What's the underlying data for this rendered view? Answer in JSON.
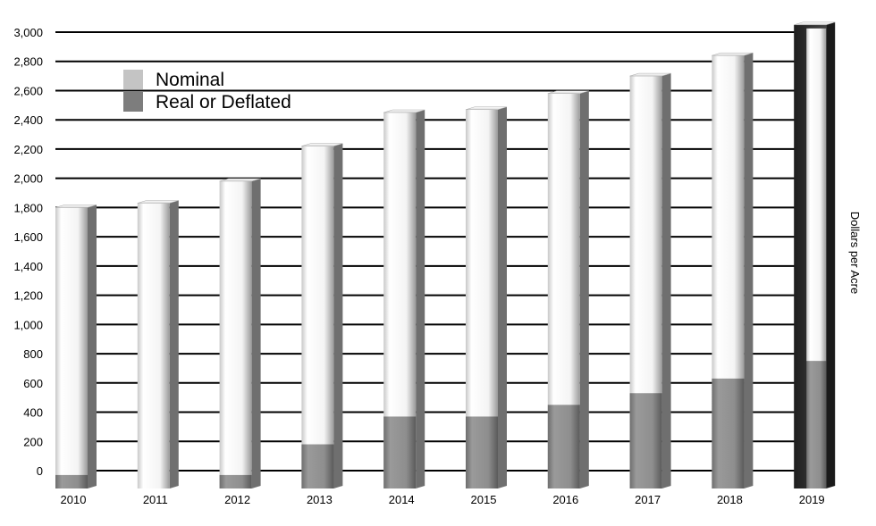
{
  "chart_data": {
    "type": "bar",
    "title": "",
    "xlabel": "",
    "ylabel": "Dollars per Acre",
    "ylim": [
      0,
      3000
    ],
    "yticks": [
      "0",
      "200",
      "400",
      "600",
      "800",
      "1,000",
      "1,200",
      "1,400",
      "1,600",
      "1,800",
      "2,000",
      "2,200",
      "2,400",
      "2,600",
      "2,800",
      "3,000"
    ],
    "categories": [
      "2010",
      "2011",
      "2012",
      "2013",
      "2014",
      "2015",
      "2016",
      "2017",
      "2018",
      "2019"
    ],
    "series": [
      {
        "name": "Nominal",
        "values": [
          1800,
          1830,
          1980,
          2220,
          2450,
          2470,
          2580,
          2700,
          2840,
          3050
        ],
        "color": "#f2f2f2"
      },
      {
        "name": "Real or Deflated",
        "values": [
          -30,
          0,
          -30,
          180,
          370,
          370,
          450,
          530,
          630,
          750
        ],
        "color": "#8c8c8c"
      }
    ],
    "legend": {
      "position": "top-left",
      "items": [
        {
          "label": "Nominal",
          "color": "#c4c4c4"
        },
        {
          "label": "Real or Deflated",
          "color": "#7d7d7d"
        }
      ]
    },
    "grid": true
  }
}
